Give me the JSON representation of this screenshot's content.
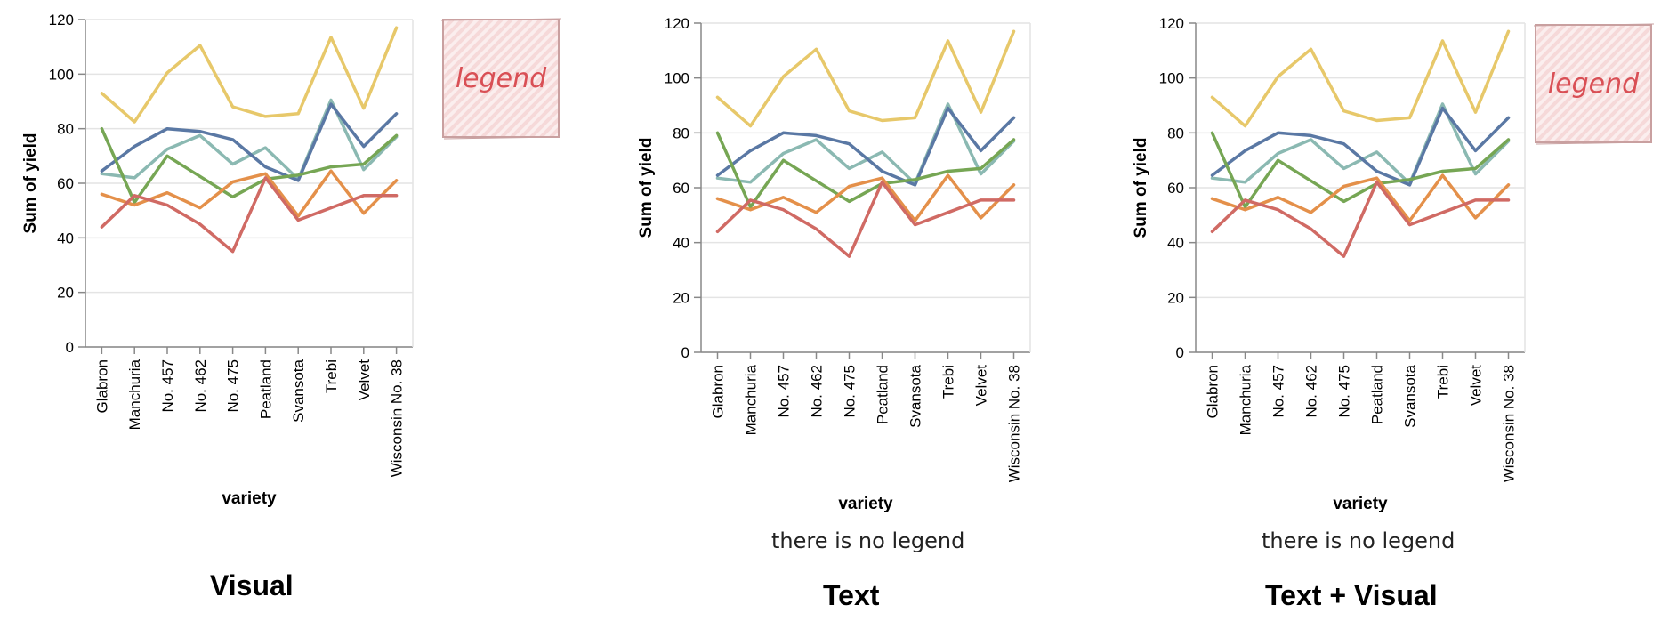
{
  "panels": [
    {
      "id": "visual",
      "caption": "Visual",
      "note": "",
      "legend_box_label": "legend"
    },
    {
      "id": "text",
      "caption": "Text",
      "note": "there is no legend",
      "legend_box_label": ""
    },
    {
      "id": "textvisual",
      "caption": "Text + Visual",
      "note": "there is no legend",
      "legend_box_label": "legend"
    }
  ],
  "colors": {
    "yellow": "#e7c86a",
    "blue": "#5a78a4",
    "teal": "#8bb9b2",
    "green": "#76a654",
    "orange": "#e4904a",
    "red": "#d06a64",
    "legend_fill": "#f6d9d9",
    "legend_stroke": "#c9a0a0",
    "legend_text": "#d94f55"
  },
  "chart_data": [
    {
      "type": "line",
      "xlabel": "variety",
      "ylabel": "Sum of yield",
      "ylim": [
        0,
        120
      ],
      "yticks": [
        0,
        20,
        40,
        60,
        80,
        100,
        120
      ],
      "grid": true,
      "categories": [
        "Glabron",
        "Manchuria",
        "No. 457",
        "No. 462",
        "No. 475",
        "Peatland",
        "Svansota",
        "Trebi",
        "Velvet",
        "Wisconsin No. 38"
      ],
      "series": [
        {
          "color": "#e7c86a",
          "values": [
            93,
            82.5,
            100.5,
            110.5,
            88,
            84.5,
            85.5,
            113.5,
            87.5,
            117
          ]
        },
        {
          "color": "#8bb9b2",
          "values": [
            63.5,
            62,
            72.5,
            77.5,
            67,
            73,
            61.5,
            90.5,
            65,
            77
          ]
        },
        {
          "color": "#5a78a4",
          "values": [
            64.5,
            73.5,
            80,
            79,
            76,
            66,
            61,
            89,
            73.5,
            85.5
          ]
        },
        {
          "color": "#76a654",
          "values": [
            80,
            53,
            70,
            62.5,
            55,
            61.5,
            63,
            66,
            67,
            77.5
          ]
        },
        {
          "color": "#e4904a",
          "values": [
            56,
            52,
            56.5,
            51,
            60.5,
            63.5,
            48,
            64.5,
            49,
            61
          ]
        },
        {
          "color": "#d06a64",
          "values": [
            44,
            55.5,
            52,
            45,
            35,
            62,
            46.5,
            51,
            55.5,
            55.5
          ]
        }
      ]
    },
    {
      "type": "line",
      "xlabel": "variety",
      "ylabel": "Sum of yield",
      "ylim": [
        0,
        120
      ],
      "yticks": [
        0,
        20,
        40,
        60,
        80,
        100,
        120
      ],
      "grid": true,
      "categories": [
        "Glabron",
        "Manchuria",
        "No. 457",
        "No. 462",
        "No. 475",
        "Peatland",
        "Svansota",
        "Trebi",
        "Velvet",
        "Wisconsin No. 38"
      ],
      "series": [
        {
          "color": "#e7c86a",
          "values": [
            93,
            82.5,
            100.5,
            110.5,
            88,
            84.5,
            85.5,
            113.5,
            87.5,
            117
          ]
        },
        {
          "color": "#8bb9b2",
          "values": [
            63.5,
            62,
            72.5,
            77.5,
            67,
            73,
            61.5,
            90.5,
            65,
            77
          ]
        },
        {
          "color": "#5a78a4",
          "values": [
            64.5,
            73.5,
            80,
            79,
            76,
            66,
            61,
            89,
            73.5,
            85.5
          ]
        },
        {
          "color": "#76a654",
          "values": [
            80,
            53,
            70,
            62.5,
            55,
            61.5,
            63,
            66,
            67,
            77.5
          ]
        },
        {
          "color": "#e4904a",
          "values": [
            56,
            52,
            56.5,
            51,
            60.5,
            63.5,
            48,
            64.5,
            49,
            61
          ]
        },
        {
          "color": "#d06a64",
          "values": [
            44,
            55.5,
            52,
            45,
            35,
            62,
            46.5,
            51,
            55.5,
            55.5
          ]
        }
      ]
    },
    {
      "type": "line",
      "xlabel": "variety",
      "ylabel": "Sum of yield",
      "ylim": [
        0,
        120
      ],
      "yticks": [
        0,
        20,
        40,
        60,
        80,
        100,
        120
      ],
      "grid": true,
      "categories": [
        "Glabron",
        "Manchuria",
        "No. 457",
        "No. 462",
        "No. 475",
        "Peatland",
        "Svansota",
        "Trebi",
        "Velvet",
        "Wisconsin No. 38"
      ],
      "series": [
        {
          "color": "#e7c86a",
          "values": [
            93,
            82.5,
            100.5,
            110.5,
            88,
            84.5,
            85.5,
            113.5,
            87.5,
            117
          ]
        },
        {
          "color": "#8bb9b2",
          "values": [
            63.5,
            62,
            72.5,
            77.5,
            67,
            73,
            61.5,
            90.5,
            65,
            77
          ]
        },
        {
          "color": "#5a78a4",
          "values": [
            64.5,
            73.5,
            80,
            79,
            76,
            66,
            61,
            89,
            73.5,
            85.5
          ]
        },
        {
          "color": "#76a654",
          "values": [
            80,
            53,
            70,
            62.5,
            55,
            61.5,
            63,
            66,
            67,
            77.5
          ]
        },
        {
          "color": "#e4904a",
          "values": [
            56,
            52,
            56.5,
            51,
            60.5,
            63.5,
            48,
            64.5,
            49,
            61
          ]
        },
        {
          "color": "#d06a64",
          "values": [
            44,
            55.5,
            52,
            45,
            35,
            62,
            46.5,
            51,
            55.5,
            55.5
          ]
        }
      ]
    }
  ]
}
